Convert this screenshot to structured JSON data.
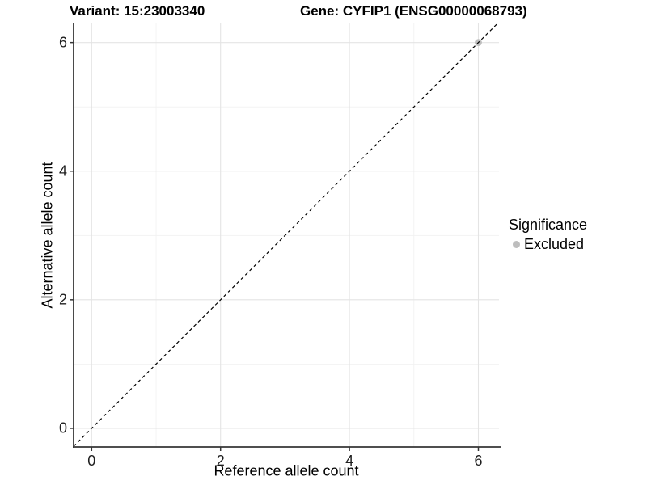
{
  "header": {
    "variant_title": "Variant: 15:23003340",
    "gene_title": "Gene: CYFIP1 (ENSG00000068793)"
  },
  "chart_data": {
    "type": "scatter",
    "title": "Variant: 15:23003340  /  Gene: CYFIP1 (ENSG00000068793)",
    "xlabel": "Reference allele count",
    "ylabel": "Alternative allele count",
    "xlim": [
      -0.28,
      6.32
    ],
    "ylim": [
      -0.29,
      6.31
    ],
    "x_major_ticks": [
      0,
      2,
      4,
      6
    ],
    "y_major_ticks": [
      0,
      2,
      4,
      6
    ],
    "x_minor_ticks": [
      1,
      3,
      5
    ],
    "y_minor_ticks": [
      1,
      3,
      5
    ],
    "grid": "major and minor gridlines on white background",
    "points": [
      {
        "x": 6,
        "y": 6,
        "series": "Excluded"
      }
    ],
    "identity_line": {
      "slope": 1,
      "intercept": 0,
      "style": "dashed",
      "color": "#000000"
    },
    "legend": {
      "title": "Significance",
      "position": "right",
      "entries": [
        {
          "label": "Excluded",
          "color": "#bebebe"
        }
      ]
    },
    "colors": {
      "point_excluded": "#bebebe",
      "grid_major": "#e4e4e4",
      "grid_minor": "#f1f1f1",
      "axis_line": "#363636",
      "tick_mark": "#363636",
      "tick_text": "#1f1f1f"
    }
  }
}
